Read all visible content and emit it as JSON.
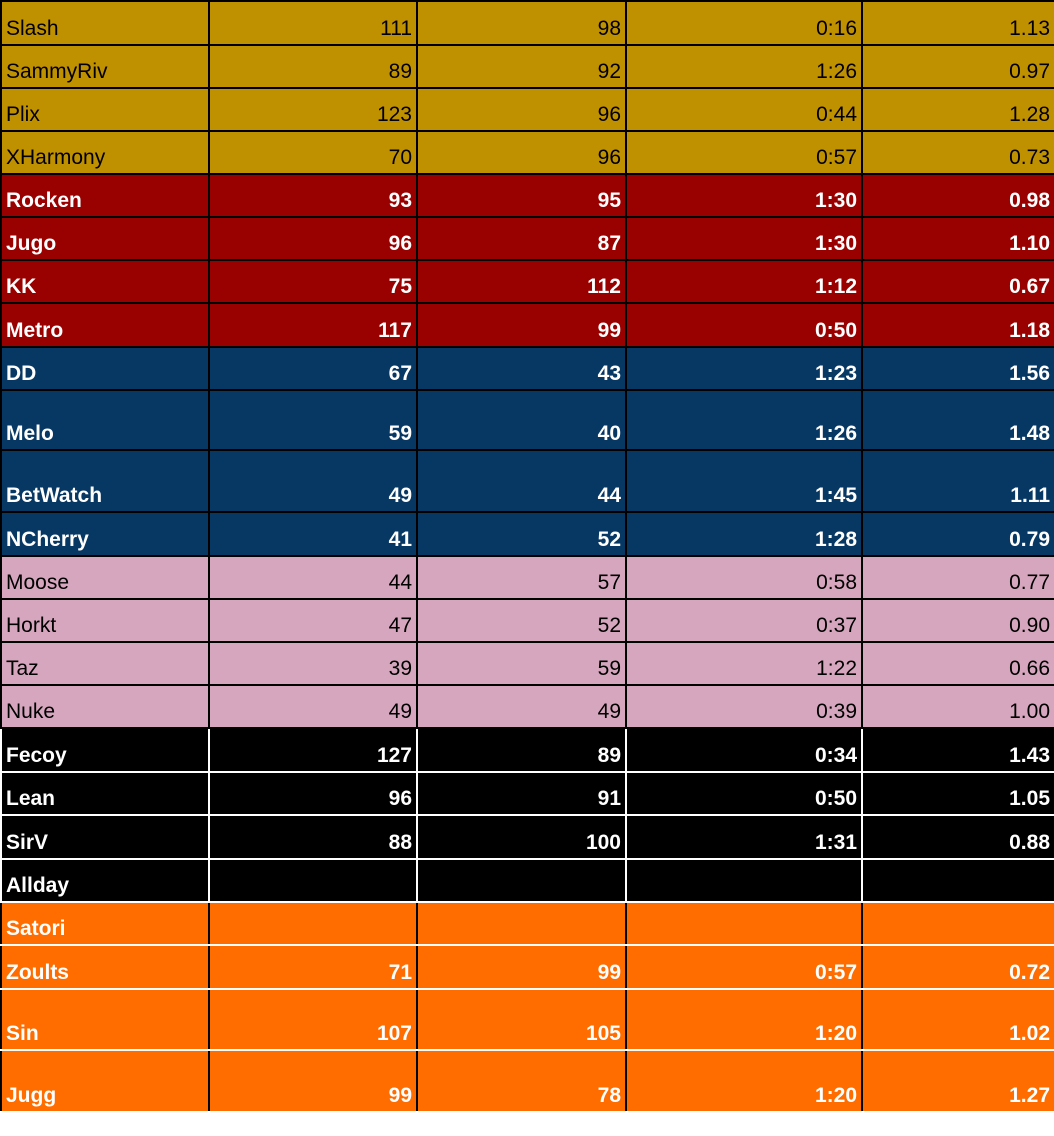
{
  "columns": [
    "player",
    "stat_a",
    "stat_b",
    "time",
    "ratio"
  ],
  "rows": [
    {
      "team": "gold",
      "player": "Slash",
      "stat_a": "111",
      "stat_b": "98",
      "time": "0:16",
      "ratio": "1.13"
    },
    {
      "team": "gold",
      "player": "SammyRiv",
      "stat_a": "89",
      "stat_b": "92",
      "time": "1:26",
      "ratio": "0.97"
    },
    {
      "team": "gold",
      "player": "Plix",
      "stat_a": "123",
      "stat_b": "96",
      "time": "0:44",
      "ratio": "1.28"
    },
    {
      "team": "gold",
      "player": "XHarmony",
      "stat_a": "70",
      "stat_b": "96",
      "time": "0:57",
      "ratio": "0.73"
    },
    {
      "team": "red",
      "player": "Rocken",
      "stat_a": "93",
      "stat_b": "95",
      "time": "1:30",
      "ratio": "0.98"
    },
    {
      "team": "red",
      "player": "Jugo",
      "stat_a": "96",
      "stat_b": "87",
      "time": "1:30",
      "ratio": "1.10"
    },
    {
      "team": "red",
      "player": "KK",
      "stat_a": "75",
      "stat_b": "112",
      "time": "1:12",
      "ratio": "0.67"
    },
    {
      "team": "red",
      "player": "Metro",
      "stat_a": "117",
      "stat_b": "99",
      "time": "0:50",
      "ratio": "1.18"
    },
    {
      "team": "blue",
      "player": "DD",
      "stat_a": "67",
      "stat_b": "43",
      "time": "1:23",
      "ratio": "1.56"
    },
    {
      "team": "blue",
      "player": "Melo",
      "stat_a": "59",
      "stat_b": "40",
      "time": "1:26",
      "ratio": "1.48"
    },
    {
      "team": "blue",
      "player": "BetWatch",
      "stat_a": "49",
      "stat_b": "44",
      "time": "1:45",
      "ratio": "1.11"
    },
    {
      "team": "blue",
      "player": "NCherry",
      "stat_a": "41",
      "stat_b": "52",
      "time": "1:28",
      "ratio": "0.79"
    },
    {
      "team": "pink",
      "player": "Moose",
      "stat_a": "44",
      "stat_b": "57",
      "time": "0:58",
      "ratio": "0.77"
    },
    {
      "team": "pink",
      "player": "Horkt",
      "stat_a": "47",
      "stat_b": "52",
      "time": "0:37",
      "ratio": "0.90"
    },
    {
      "team": "pink",
      "player": "Taz",
      "stat_a": "39",
      "stat_b": "59",
      "time": "1:22",
      "ratio": "0.66"
    },
    {
      "team": "pink",
      "player": "Nuke",
      "stat_a": "49",
      "stat_b": "49",
      "time": "0:39",
      "ratio": "1.00"
    },
    {
      "team": "black",
      "player": "Fecoy",
      "stat_a": "127",
      "stat_b": "89",
      "time": "0:34",
      "ratio": "1.43"
    },
    {
      "team": "black",
      "player": "Lean",
      "stat_a": "96",
      "stat_b": "91",
      "time": "0:50",
      "ratio": "1.05"
    },
    {
      "team": "black",
      "player": "SirV",
      "stat_a": "88",
      "stat_b": "100",
      "time": "1:31",
      "ratio": "0.88"
    },
    {
      "team": "black",
      "player": "Allday",
      "stat_a": "",
      "stat_b": "",
      "time": "",
      "ratio": ""
    },
    {
      "team": "orange",
      "player": "Satori",
      "stat_a": "",
      "stat_b": "",
      "time": "",
      "ratio": ""
    },
    {
      "team": "orange",
      "player": "Zoults",
      "stat_a": "71",
      "stat_b": "99",
      "time": "0:57",
      "ratio": "0.72"
    },
    {
      "team": "orange",
      "player": "Sin",
      "stat_a": "107",
      "stat_b": "105",
      "time": "1:20",
      "ratio": "1.02"
    },
    {
      "team": "orange",
      "player": "Jugg",
      "stat_a": "99",
      "stat_b": "78",
      "time": "1:20",
      "ratio": "1.27"
    }
  ],
  "team_colors": {
    "gold": "#bf9000",
    "red": "#990000",
    "blue": "#073763",
    "pink": "#d5a6bd",
    "black": "#000000",
    "orange": "#ff6d01"
  }
}
